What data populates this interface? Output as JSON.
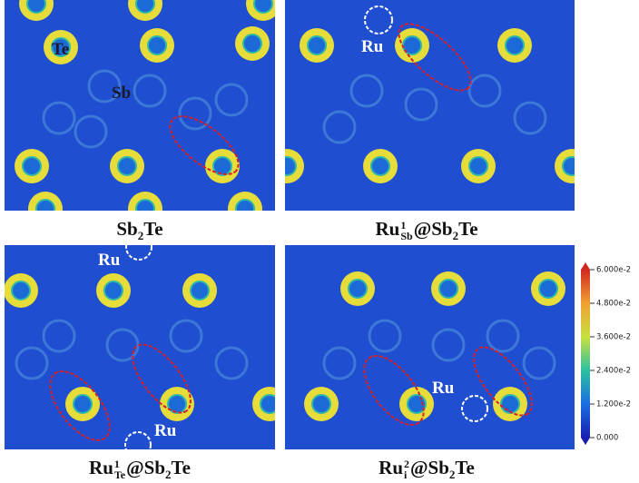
{
  "panels": [
    {
      "caption": [
        {
          "text": "Sb"
        },
        {
          "sub": "2"
        },
        {
          "text": "Te"
        }
      ],
      "labels": [
        "Te",
        "Sb"
      ]
    },
    {
      "caption": [
        {
          "text": "Ru"
        },
        {
          "sup": "1",
          "sub": "Sb"
        },
        {
          "text": "@Sb"
        },
        {
          "sub": "2"
        },
        {
          "text": "Te"
        }
      ],
      "labels": [
        "Ru"
      ]
    },
    {
      "caption": [
        {
          "text": "Ru"
        },
        {
          "sup": "1",
          "sub": "Te"
        },
        {
          "text": "@Sb"
        },
        {
          "sub": "2"
        },
        {
          "text": "Te"
        }
      ],
      "labels": [
        "Ru",
        "Ru"
      ]
    },
    {
      "caption": [
        {
          "text": "Ru"
        },
        {
          "sup": "2",
          "sub": "i"
        },
        {
          "text": "@Sb"
        },
        {
          "sub": "2"
        },
        {
          "text": "Te"
        }
      ],
      "labels": [
        "Ru"
      ]
    }
  ],
  "colorbar": {
    "lim": [
      0,
      0.06
    ],
    "ticks": [
      {
        "value": 0,
        "label": "0.000"
      },
      {
        "value": 0.012,
        "label": "1.200e-2"
      },
      {
        "value": 0.024,
        "label": "2.400e-2"
      },
      {
        "value": 0.036,
        "label": "3.600e-2"
      },
      {
        "value": 0.048,
        "label": "4.800e-2"
      },
      {
        "value": 0.06,
        "label": "6.000e-2"
      }
    ]
  }
}
